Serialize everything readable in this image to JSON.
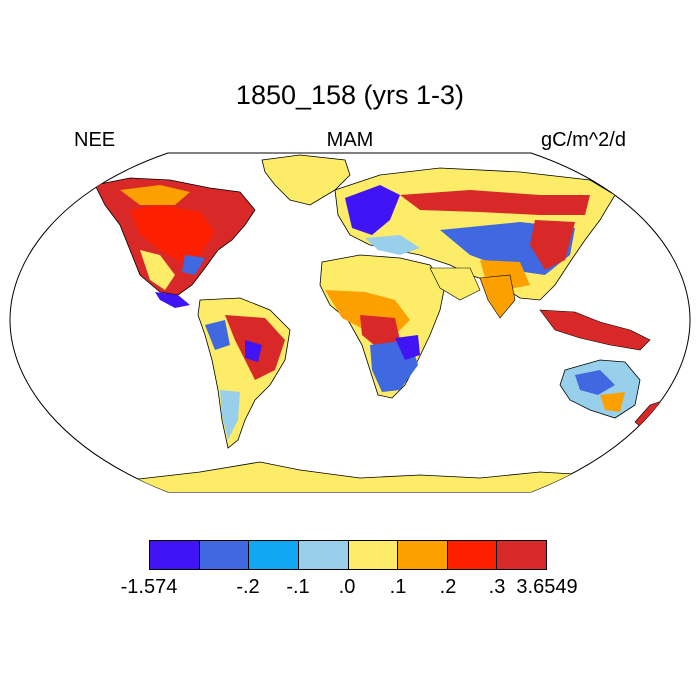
{
  "title": "1850_158 (yrs 1-3)",
  "variable": "NEE",
  "season": "MAM",
  "units": "gC/m^2/d",
  "colorbar": {
    "colors": [
      "#4014f4",
      "#4068e0",
      "#10a8f4",
      "#98d0ec",
      "#fcec68",
      "#fca000",
      "#fc2000",
      "#d82828"
    ],
    "labels": [
      "-1.574",
      "-.2",
      "-.1",
      ".0",
      ".1",
      ".2",
      ".3",
      "3.6549"
    ]
  },
  "legend_colors": {
    "ocean": "#ffffff",
    "outline": "#000000",
    "ice": "#fcec68"
  }
}
